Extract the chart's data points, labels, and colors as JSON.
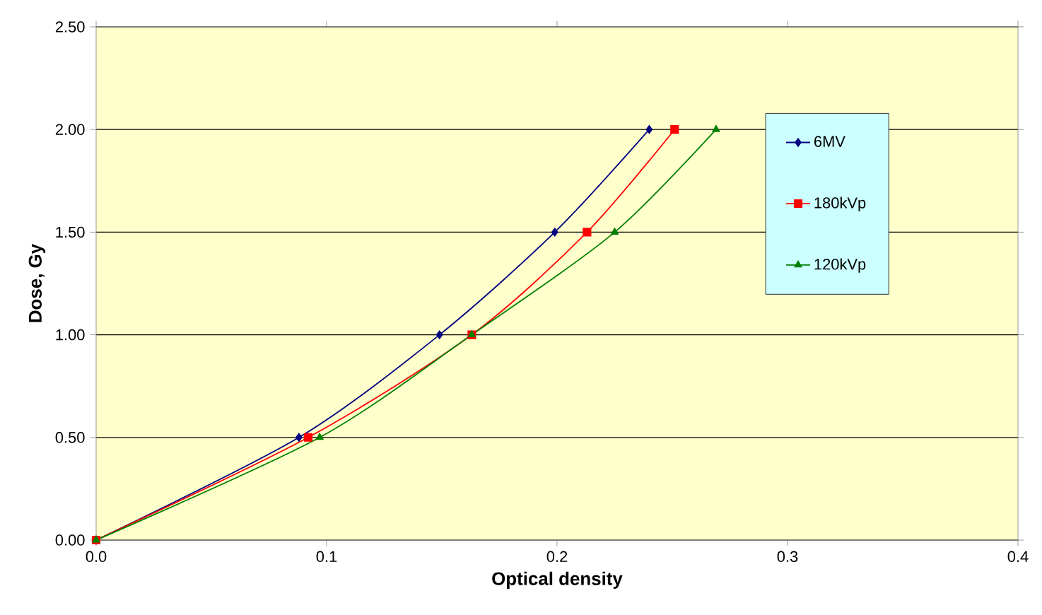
{
  "chart_data": {
    "type": "line",
    "xlabel": "Optical density",
    "ylabel": "Dose, Gy",
    "xlim": [
      0,
      0.4
    ],
    "ylim": [
      0,
      2.5
    ],
    "xticks": [
      {
        "value": 0,
        "label": "0.0"
      },
      0.1,
      0.2,
      0.3,
      0.4
    ],
    "yticks": [
      {
        "value": 0,
        "label": "0.00"
      },
      {
        "value": 0.5,
        "label": "0.50"
      },
      {
        "value": 1,
        "label": "1.00"
      },
      {
        "value": 1.5,
        "label": "1.50"
      },
      {
        "value": 2,
        "label": "2.00"
      },
      {
        "value": 2.5,
        "label": "2.50"
      }
    ],
    "grid": "y",
    "legend": "right",
    "series": [
      {
        "name": "6MV",
        "color": "#000080",
        "marker": "diamond",
        "x": [
          0,
          0.088,
          0.149,
          0.199,
          0.24
        ],
        "values": [
          0,
          0.5,
          1,
          1.5,
          2
        ]
      },
      {
        "name": "180kVp",
        "color": "#ff0000",
        "marker": "square",
        "x": [
          0,
          0.092,
          0.163,
          0.213,
          0.251
        ],
        "values": [
          0,
          0.5,
          1,
          1.5,
          2
        ]
      },
      {
        "name": "120kVp",
        "color": "#008000",
        "marker": "triangle",
        "x": [
          0,
          0.097,
          0.163,
          0.225,
          0.269
        ],
        "values": [
          0,
          0.5,
          1,
          1.5,
          2
        ]
      }
    ]
  }
}
